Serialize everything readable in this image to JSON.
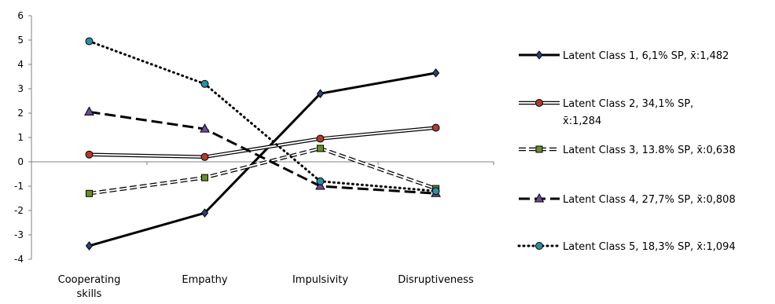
{
  "chart_data": {
    "type": "line",
    "categories": [
      "Cooperating skills",
      "Empathy",
      "Impulsivity",
      "Disruptiveness"
    ],
    "category_lines": [
      [
        "Cooperating",
        "skills"
      ],
      [
        "Empathy"
      ],
      [
        "Impulsivity"
      ],
      [
        "Disruptiveness"
      ]
    ],
    "ylim": [
      -4,
      6
    ],
    "yticks": [
      -4,
      -3,
      -2,
      -1,
      0,
      1,
      2,
      3,
      4,
      5,
      6
    ],
    "grid": false,
    "legend_position": "right",
    "series": [
      {
        "name": "Latent Class 1, 6,1% SP, x̄:1,482",
        "label_lines": [
          "Latent Class 1, 6,1% SP, x̄:1,482"
        ],
        "values": [
          -3.45,
          -2.1,
          2.8,
          3.65
        ],
        "style": "solid-thick",
        "marker": "diamond",
        "color": "#000000",
        "marker_color": "#2f3f70"
      },
      {
        "name": "Latent Class 2, 34,1% SP, x̄:1,284",
        "label_lines": [
          "Latent Class 2, 34,1% SP,",
          "x̄:1,284"
        ],
        "values": [
          0.3,
          0.2,
          0.95,
          1.4
        ],
        "style": "double",
        "marker": "circle",
        "color": "#000000",
        "marker_color": "#b03a2e"
      },
      {
        "name": "Latent Class 3, 13.8% SP, x̄:0,638",
        "label_lines": [
          "Latent Class 3, 13.8% SP, x̄:0,638"
        ],
        "values": [
          -1.3,
          -0.65,
          0.55,
          -1.1
        ],
        "style": "double-dashed",
        "marker": "square",
        "color": "#000000",
        "marker_color": "#6b8e23"
      },
      {
        "name": "Latent Class 4, 27,7% SP, x̄:0,808",
        "label_lines": [
          "Latent Class 4, 27,7% SP, x̄:0,808"
        ],
        "values": [
          2.05,
          1.35,
          -1.0,
          -1.3
        ],
        "style": "long-dash",
        "marker": "triangle",
        "color": "#000000",
        "marker_color": "#6a4c9c"
      },
      {
        "name": "Latent Class 5, 18,3% SP, x̄:1,094",
        "label_lines": [
          "Latent Class 5, 18,3% SP, x̄:1,094"
        ],
        "values": [
          4.95,
          3.2,
          -0.8,
          -1.2
        ],
        "style": "dotted",
        "marker": "circle",
        "color": "#000000",
        "marker_color": "#2a8fa3"
      }
    ]
  }
}
